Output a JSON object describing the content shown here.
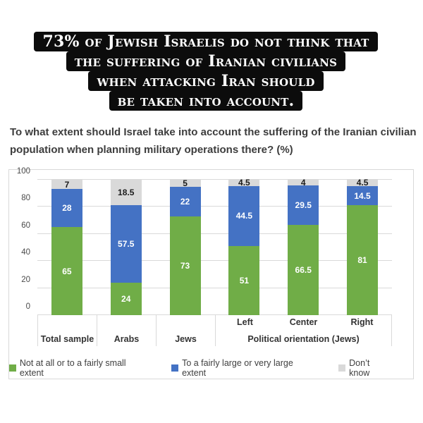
{
  "banner": {
    "lines": [
      "73% of Jewish Israelis do not think that",
      "the suffering of Iranian civilians",
      "when attacking Iran should",
      "be taken into account."
    ],
    "background": "#0c0c0c",
    "text_color": "#ffffff"
  },
  "question": {
    "text": "To what extent should Israel take into account the suffering of the Iranian civilian population when planning military operations there? (%)"
  },
  "chart_data": {
    "type": "bar",
    "stacked": true,
    "categories": [
      "Total sample",
      "Arabs",
      "Jews",
      "Left",
      "Center",
      "Right"
    ],
    "series": [
      {
        "name": "Not at all or to a fairly small extent",
        "color": "#70ad47",
        "label_color": "#ffffff",
        "values": [
          65,
          24,
          73,
          51,
          66.5,
          81
        ]
      },
      {
        "name": "To a fairly large or very large extent",
        "color": "#4472c4",
        "label_color": "#ffffff",
        "values": [
          28,
          57.5,
          22,
          44.5,
          29.5,
          14.5
        ]
      },
      {
        "name": "Don’t know",
        "color": "#d9d9d9",
        "label_color": "#1a1a1a",
        "values": [
          7,
          18.5,
          5,
          4.5,
          4,
          4.5
        ]
      }
    ],
    "axis_groups": [
      {
        "label": "Total sample",
        "span": 1,
        "sub_labels": []
      },
      {
        "label": "Arabs",
        "span": 1,
        "sub_labels": []
      },
      {
        "label": "Jews",
        "span": 1,
        "sub_labels": []
      },
      {
        "label": "Political orientation (Jews)",
        "span": 3,
        "sub_labels": [
          "Left",
          "Center",
          "Right"
        ]
      }
    ],
    "ylim": [
      0,
      100
    ],
    "yticks": [
      0,
      20,
      40,
      60,
      80,
      100
    ],
    "grid": true,
    "legend_position": "bottom",
    "gridline_color": "#d9d9d9"
  }
}
